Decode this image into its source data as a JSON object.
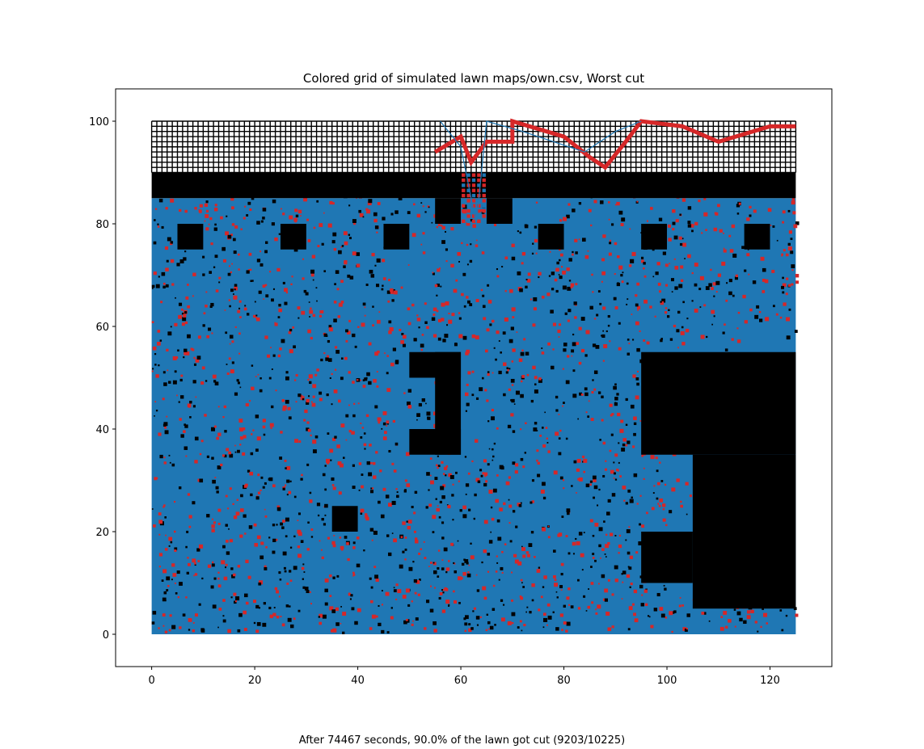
{
  "chart_data": {
    "type": "heatmap",
    "title": "Colored grid of simulated lawn maps/own.csv, Worst cut",
    "xlabel": "",
    "ylabel": "",
    "xlim": [
      -7,
      132
    ],
    "ylim": [
      -6.3,
      106.3
    ],
    "x_ticks": [
      0,
      20,
      40,
      60,
      80,
      100,
      120
    ],
    "y_ticks": [
      0,
      20,
      40,
      60,
      80,
      100
    ],
    "grid": false,
    "colors": {
      "cut_path": "#1f77b4",
      "uncut": "#d62728",
      "obstacle": "#000000",
      "unreachable_cell": "#ffffff"
    },
    "lawn_extent": {
      "x": [
        0,
        125
      ],
      "y": [
        0,
        85
      ]
    },
    "unreachable_band": {
      "x": [
        0,
        125
      ],
      "y": [
        90,
        100
      ]
    },
    "obstacles": [
      {
        "x": [
          0,
          125
        ],
        "y": [
          85,
          90
        ]
      },
      {
        "x": [
          55,
          60
        ],
        "y": [
          80,
          85
        ]
      },
      {
        "x": [
          65,
          70
        ],
        "y": [
          80,
          85
        ]
      },
      {
        "x": [
          5,
          10
        ],
        "y": [
          75,
          80
        ]
      },
      {
        "x": [
          25,
          30
        ],
        "y": [
          75,
          80
        ]
      },
      {
        "x": [
          45,
          50
        ],
        "y": [
          75,
          80
        ]
      },
      {
        "x": [
          75,
          80
        ],
        "y": [
          75,
          80
        ]
      },
      {
        "x": [
          95,
          100
        ],
        "y": [
          75,
          80
        ]
      },
      {
        "x": [
          115,
          120
        ],
        "y": [
          75,
          80
        ]
      },
      {
        "x": [
          50,
          60
        ],
        "y": [
          50,
          55
        ]
      },
      {
        "x": [
          55,
          60
        ],
        "y": [
          35,
          55
        ]
      },
      {
        "x": [
          50,
          60
        ],
        "y": [
          35,
          40
        ]
      },
      {
        "x": [
          95,
          125
        ],
        "y": [
          35,
          55
        ]
      },
      {
        "x": [
          105,
          125
        ],
        "y": [
          5,
          35
        ]
      },
      {
        "x": [
          95,
          105
        ],
        "y": [
          10,
          20
        ]
      },
      {
        "x": [
          35,
          40
        ],
        "y": [
          20,
          25
        ]
      }
    ],
    "corridor_uncut": {
      "x": [
        60,
        65
      ],
      "y": [
        80,
        90
      ]
    },
    "red_path": [
      [
        55,
        94
      ],
      [
        60,
        97
      ],
      [
        62,
        92
      ],
      [
        65,
        96
      ],
      [
        70,
        96
      ],
      [
        70,
        100
      ],
      [
        80,
        97
      ],
      [
        85,
        93
      ],
      [
        88,
        91
      ],
      [
        92,
        96
      ],
      [
        95,
        100
      ],
      [
        103,
        99
      ],
      [
        110,
        96
      ],
      [
        120,
        99
      ],
      [
        125,
        99
      ]
    ],
    "blue_path": [
      [
        56,
        100
      ],
      [
        60,
        95
      ],
      [
        62,
        85
      ],
      [
        63,
        80
      ],
      [
        64,
        90
      ],
      [
        65,
        100
      ],
      [
        72,
        98
      ],
      [
        78,
        96
      ],
      [
        84,
        94
      ],
      [
        90,
        98
      ],
      [
        95,
        100
      ]
    ]
  },
  "footer_text": "After 74467 seconds, 90.0% of the lawn got cut (9203/10225)"
}
